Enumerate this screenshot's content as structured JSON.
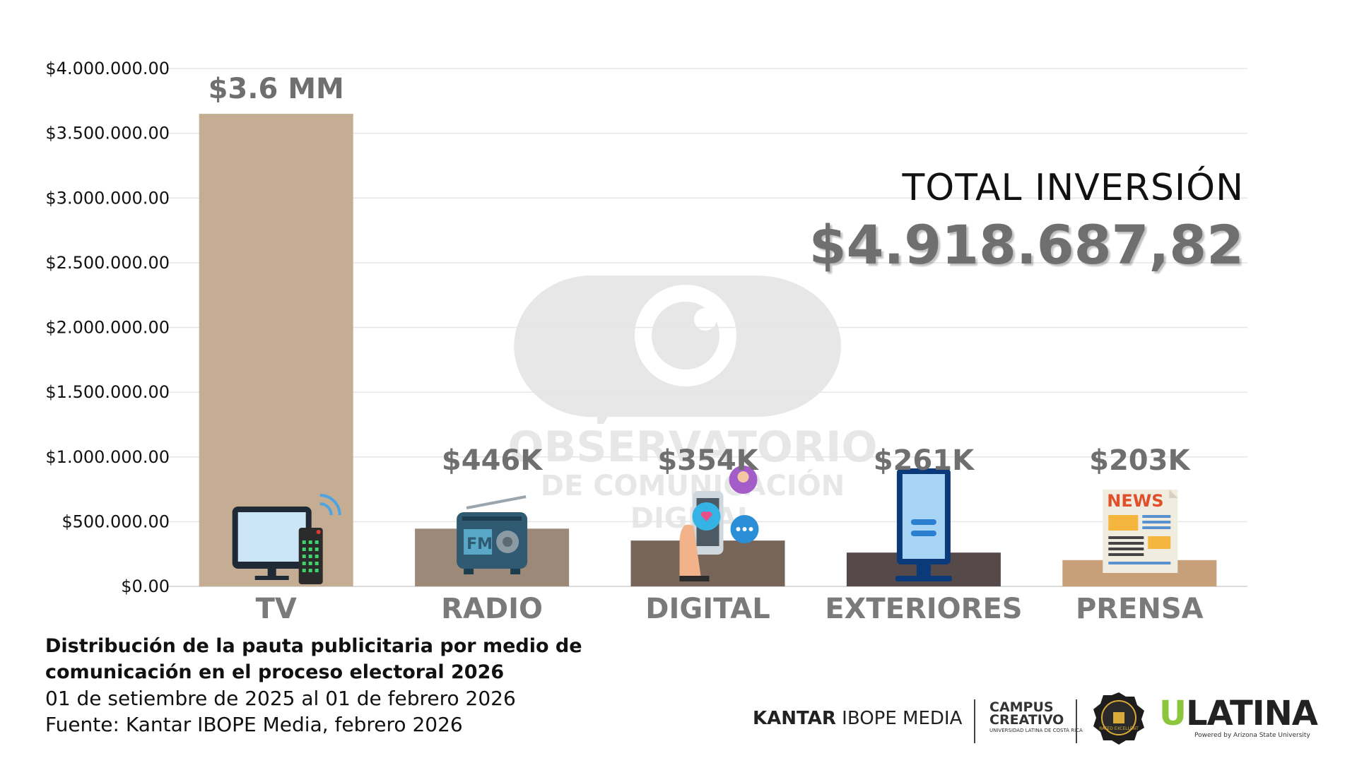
{
  "chart_data": {
    "type": "bar",
    "categories": [
      "TV",
      "RADIO",
      "DIGITAL",
      "EXTERIORES",
      "PRENSA"
    ],
    "values": [
      3650000,
      446000,
      354000,
      261000,
      203000
    ],
    "value_labels": [
      "$3.6 MM",
      "$446K",
      "$354K",
      "$261K",
      "$203K"
    ],
    "bar_colors": [
      "#c4ad92",
      "#9c8978",
      "#766558",
      "#56494a",
      "#c7a07a"
    ],
    "category_icons": [
      "tv-remote-icon",
      "radio-icon",
      "smartphone-social-icon",
      "billboard-icon",
      "newspaper-icon"
    ],
    "yticks": [
      0,
      500000,
      1000000,
      1500000,
      2000000,
      2500000,
      3000000,
      3500000,
      4000000
    ],
    "ytick_labels": [
      "$0.00",
      "$500.000.00",
      "$1.000.000.00",
      "$1.500.000.00",
      "$2.000.000.00",
      "$2.500.000.00",
      "$3.000.000.00",
      "$3.500.000.00",
      "$4.000.000.00"
    ],
    "ylim": [
      0,
      4000000
    ],
    "grid": true,
    "title": "",
    "xlabel": "",
    "ylabel": ""
  },
  "total": {
    "label": "TOTAL INVERSIÓN",
    "value": "$4.918.687,82"
  },
  "caption": {
    "title_line1": "Distribución de la pauta publicitaria por medio de",
    "title_line2": "comunicación en el proceso electoral 2026",
    "period": "01 de setiembre de 2025 al 01 de febrero 2026",
    "source": "Fuente: Kantar IBOPE Media,  febrero 2026"
  },
  "watermark": {
    "line1": "OBSERVATORIO",
    "line2": "DE COMUNICACIÓN DIGITAL"
  },
  "logos": {
    "kantar_bold": "KANTAR",
    "kantar_rest": " IBOPE MEDIA",
    "campus_line1": "CAMPUS",
    "campus_line2": "CREATIVO",
    "campus_sub": "UNIVERSIDAD LATINA DE COSTA RICA",
    "badge_text": "RATED EXCELLENT",
    "ulatina_u": "U",
    "ulatina_rest": "LATINA",
    "ulatina_sub": "Powered by Arizona State University"
  }
}
